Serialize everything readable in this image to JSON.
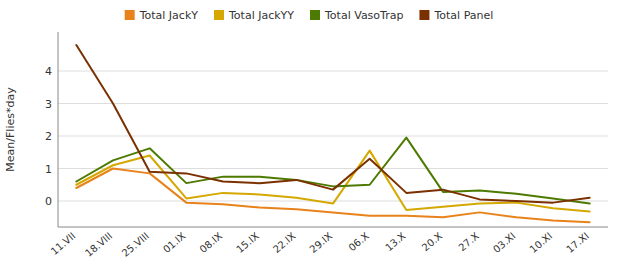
{
  "chart_data": {
    "type": "line",
    "categories": [
      "11.VII",
      "18.VIII",
      "25.VIII",
      "01.IX",
      "08.IX",
      "15.IX",
      "22.IX",
      "29.IX",
      "06.X",
      "13.X",
      "20.X",
      "27.X",
      "03.XI",
      "10.XI",
      "17.XI"
    ],
    "series": [
      {
        "name": "Total JackY",
        "color": "#E8821A",
        "values": [
          0.4,
          1.0,
          0.85,
          -0.05,
          -0.1,
          -0.2,
          -0.25,
          -0.35,
          -0.45,
          -0.45,
          -0.5,
          -0.35,
          -0.5,
          -0.6,
          -0.65
        ]
      },
      {
        "name": "Total JackYY",
        "color": "#D4A800",
        "values": [
          0.5,
          1.1,
          1.4,
          0.08,
          0.25,
          0.2,
          0.1,
          -0.08,
          1.55,
          -0.28,
          -0.18,
          -0.08,
          -0.05,
          -0.22,
          -0.32
        ]
      },
      {
        "name": "Total VasoTrap",
        "color": "#4D7A00",
        "values": [
          0.6,
          1.25,
          1.62,
          0.55,
          0.75,
          0.75,
          0.65,
          0.45,
          0.5,
          1.95,
          0.28,
          0.32,
          0.22,
          0.08,
          -0.08
        ]
      },
      {
        "name": "Total Panel",
        "color": "#7B3000",
        "values": [
          4.8,
          3.0,
          0.9,
          0.85,
          0.6,
          0.55,
          0.65,
          0.35,
          1.3,
          0.25,
          0.35,
          0.05,
          0.0,
          -0.05,
          0.1
        ]
      }
    ],
    "y_label": "Mean/Flies*day",
    "ylim": [
      -0.8,
      5.2
    ],
    "yticks": [
      0,
      1,
      2,
      3,
      4
    ],
    "grid": true,
    "legend": "top"
  }
}
